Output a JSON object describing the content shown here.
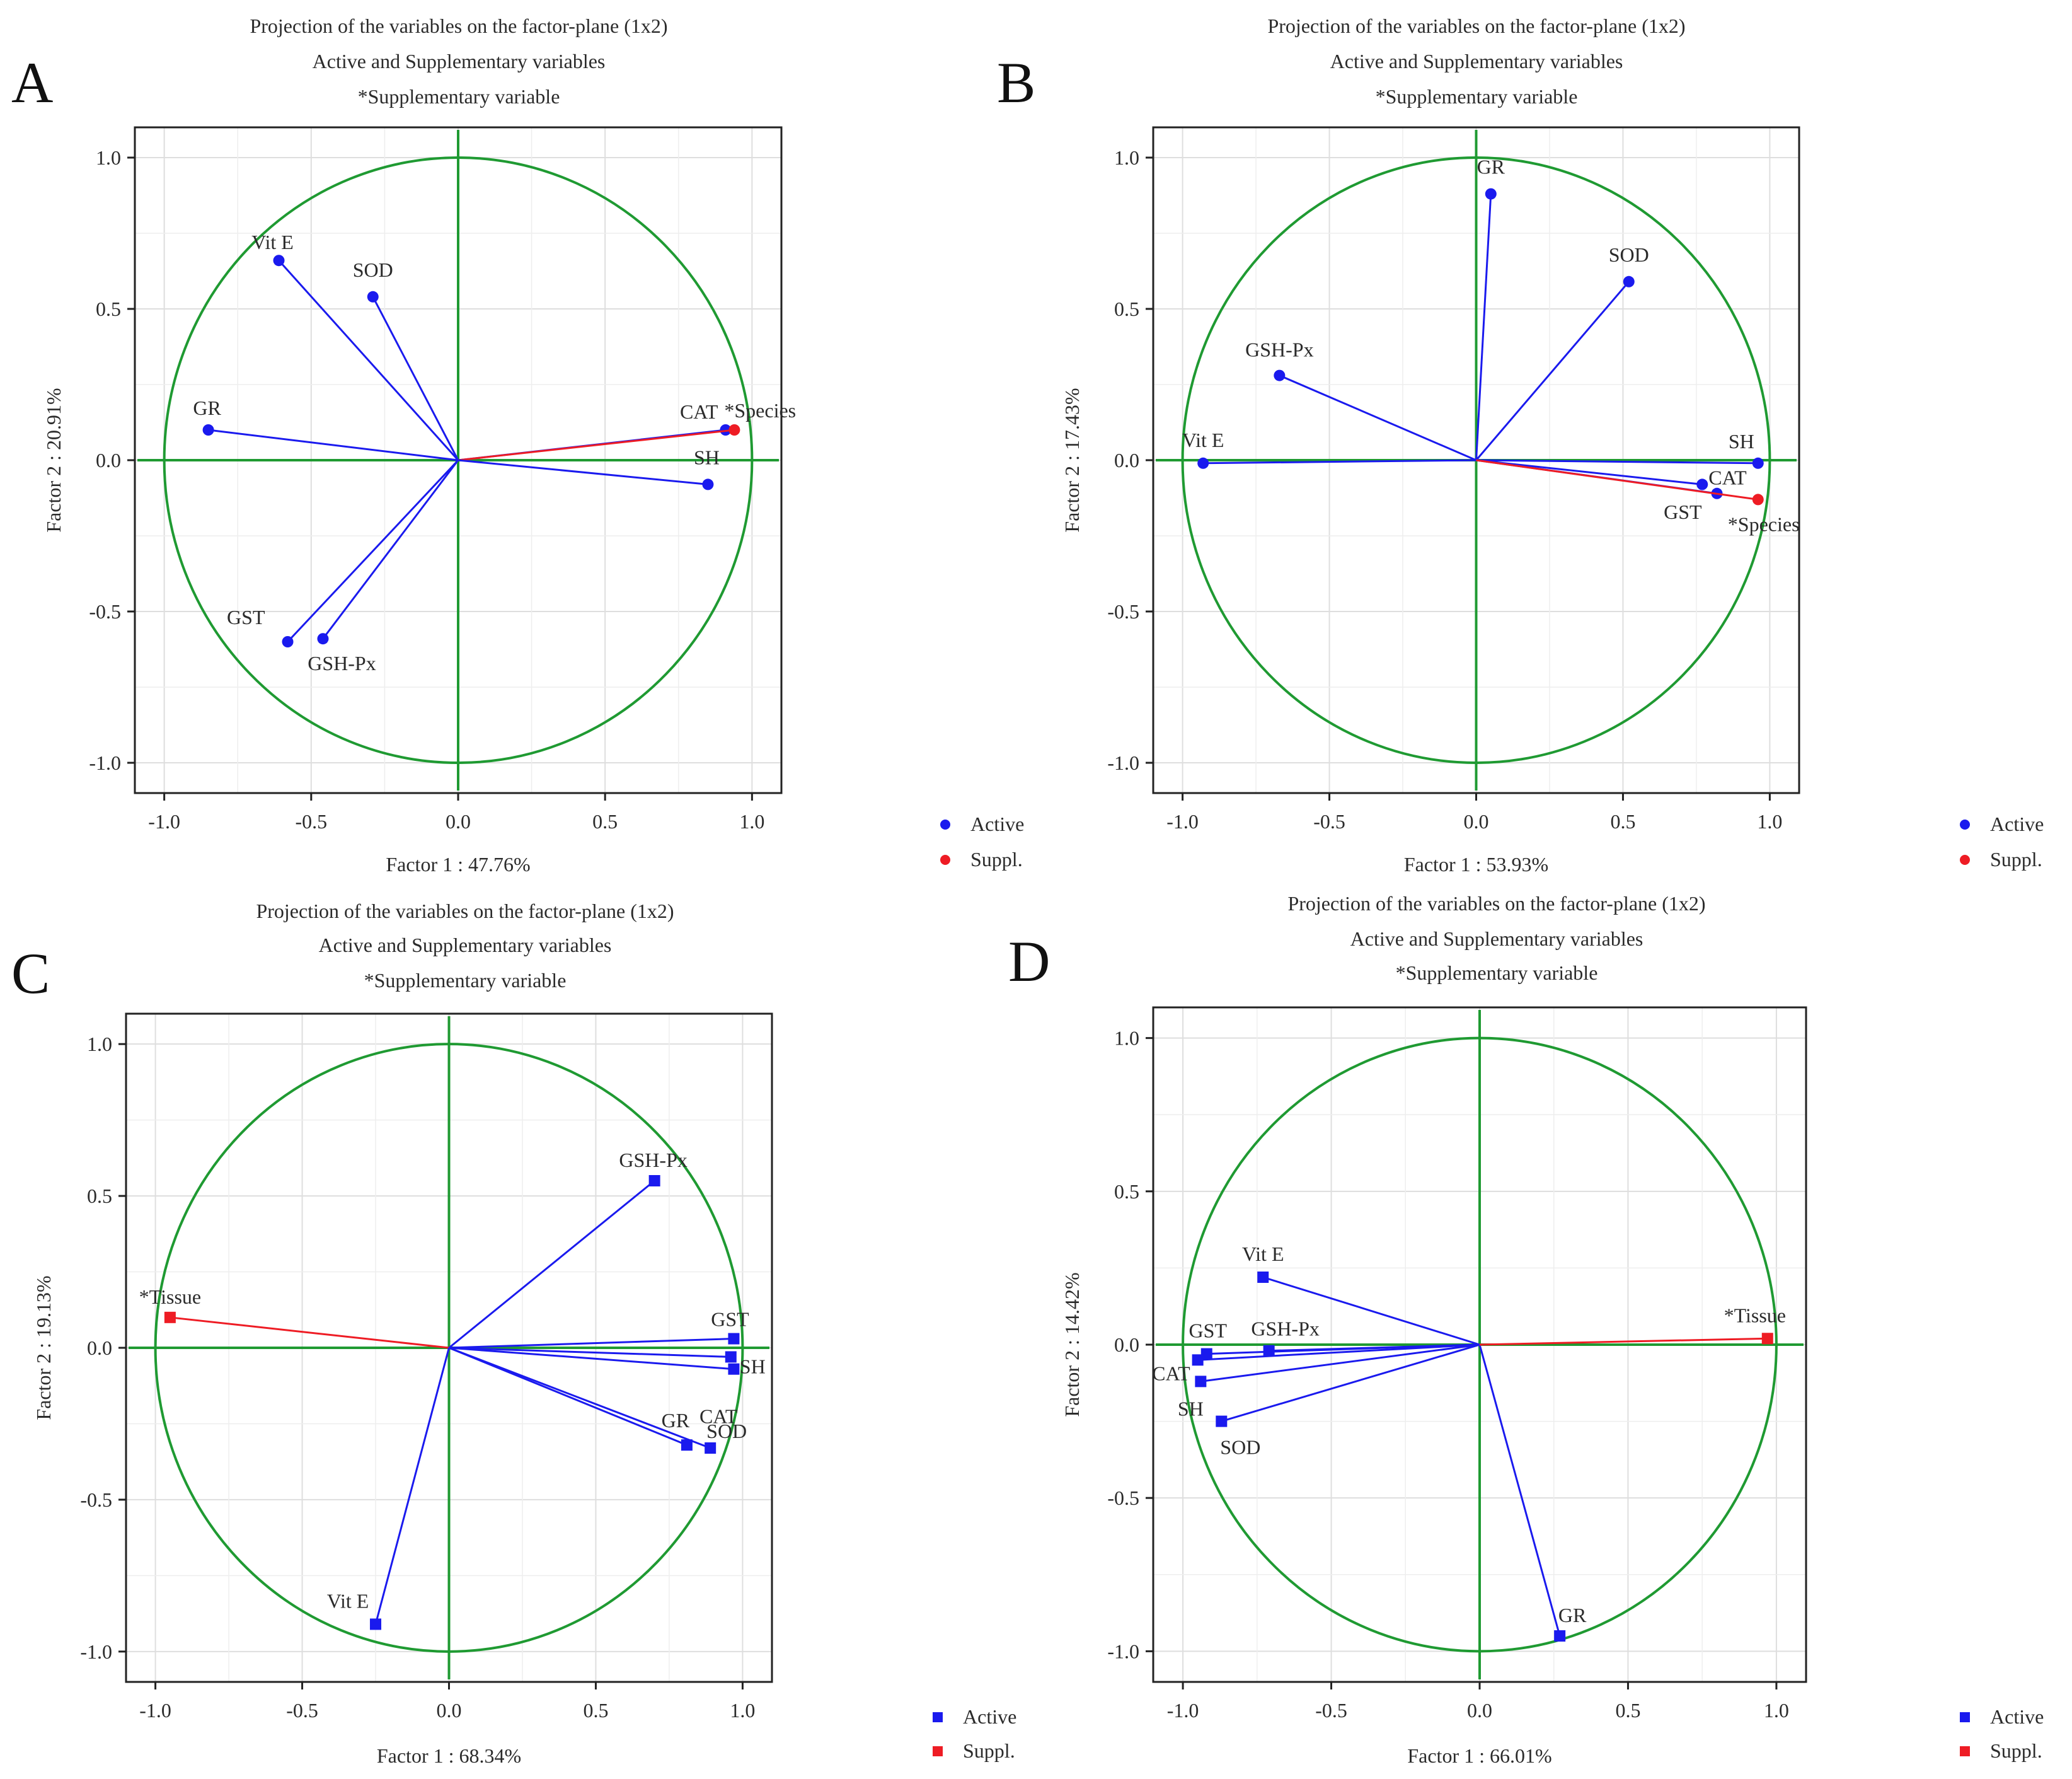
{
  "figure": {
    "title_line1": "Projection of the variables on the factor-plane (1x2)",
    "title_line2": "Active and Supplementary variables",
    "title_line3": "*Supplementary variable",
    "legend_active": "Active",
    "legend_suppl": "Suppl.",
    "colors": {
      "active": "#1a1aee",
      "suppl": "#ee1c24",
      "circle": "#1f9a32",
      "axis": "#1f9a32",
      "grid": "#dedede",
      "text": "#2b2b2b"
    }
  },
  "chart_data": [
    {
      "panel": "A",
      "type": "scatter",
      "marker": "circle",
      "xlabel": "Factor 1 : 47.76%",
      "ylabel": "Factor 2 : 20.91%",
      "xlim": [
        -1.1,
        1.1
      ],
      "ylim": [
        -1.1,
        1.1
      ],
      "xticks": [
        "-1.0",
        "-0.5",
        "0.0",
        "0.5",
        "1.0"
      ],
      "yticks": [
        "1.0",
        "0.5",
        "0.0",
        "-0.5",
        "-1.0"
      ],
      "points": [
        {
          "label": "Vit E",
          "x": -0.61,
          "y": 0.66,
          "kind": "active"
        },
        {
          "label": "SOD",
          "x": -0.29,
          "y": 0.54,
          "kind": "active"
        },
        {
          "label": "GR",
          "x": -0.85,
          "y": 0.1,
          "kind": "active"
        },
        {
          "label": "CAT",
          "x": 0.91,
          "y": 0.1,
          "kind": "active"
        },
        {
          "label": "*Species",
          "x": 0.94,
          "y": 0.1,
          "kind": "suppl"
        },
        {
          "label": "SH",
          "x": 0.85,
          "y": -0.08,
          "kind": "active"
        },
        {
          "label": "GST",
          "x": -0.58,
          "y": -0.6,
          "kind": "active"
        },
        {
          "label": "GSH-Px",
          "x": -0.46,
          "y": -0.59,
          "kind": "active"
        }
      ]
    },
    {
      "panel": "B",
      "type": "scatter",
      "marker": "circle",
      "xlabel": "Factor 1 : 53.93%",
      "ylabel": "Factor 2 : 17.43%",
      "xlim": [
        -1.1,
        1.1
      ],
      "ylim": [
        -1.1,
        1.1
      ],
      "xticks": [
        "-1.0",
        "-0.5",
        "0.0",
        "0.5",
        "1.0"
      ],
      "yticks": [
        "1.0",
        "0.5",
        "0.0",
        "-0.5",
        "-1.0"
      ],
      "points": [
        {
          "label": "GR",
          "x": 0.05,
          "y": 0.88,
          "kind": "active"
        },
        {
          "label": "SOD",
          "x": 0.52,
          "y": 0.59,
          "kind": "active"
        },
        {
          "label": "GSH-Px",
          "x": -0.67,
          "y": 0.28,
          "kind": "active"
        },
        {
          "label": "Vit E",
          "x": -0.93,
          "y": -0.01,
          "kind": "active"
        },
        {
          "label": "SH",
          "x": 0.96,
          "y": -0.01,
          "kind": "active"
        },
        {
          "label": "CAT",
          "x": 0.77,
          "y": -0.08,
          "kind": "active"
        },
        {
          "label": "GST",
          "x": 0.82,
          "y": -0.11,
          "kind": "active"
        },
        {
          "label": "*Species",
          "x": 0.96,
          "y": -0.13,
          "kind": "suppl"
        }
      ]
    },
    {
      "panel": "C",
      "type": "scatter",
      "marker": "square",
      "xlabel": "Factor 1 : 68.34%",
      "ylabel": "Factor 2 : 19.13%",
      "xlim": [
        -1.1,
        1.1
      ],
      "ylim": [
        -1.1,
        1.1
      ],
      "xticks": [
        "-1.0",
        "-0.5",
        "0.0",
        "0.5",
        "1.0"
      ],
      "yticks": [
        "1.0",
        "0.5",
        "0.0",
        "-0.5",
        "-1.0"
      ],
      "points": [
        {
          "label": "GSH-Px",
          "x": 0.7,
          "y": 0.55,
          "kind": "active"
        },
        {
          "label": "*Tissue",
          "x": -0.95,
          "y": 0.1,
          "kind": "suppl"
        },
        {
          "label": "GST",
          "x": 0.97,
          "y": 0.03,
          "kind": "active"
        },
        {
          "label": "SH",
          "x": 0.96,
          "y": -0.03,
          "kind": "active"
        },
        {
          "label": "CAT",
          "x": 0.97,
          "y": -0.07,
          "kind": "active"
        },
        {
          "label": "GR",
          "x": 0.81,
          "y": -0.32,
          "kind": "active"
        },
        {
          "label": "SOD",
          "x": 0.89,
          "y": -0.33,
          "kind": "active"
        },
        {
          "label": "Vit E",
          "x": -0.25,
          "y": -0.91,
          "kind": "active"
        }
      ]
    },
    {
      "panel": "D",
      "type": "scatter",
      "marker": "square",
      "xlabel": "Factor 1 : 66.01%",
      "ylabel": "Factor 2 : 14.42%",
      "xlim": [
        -1.1,
        1.1
      ],
      "ylim": [
        -1.1,
        1.1
      ],
      "xticks": [
        "-1.0",
        "-0.5",
        "0.0",
        "0.5",
        "1.0"
      ],
      "yticks": [
        "1.0",
        "0.5",
        "0.0",
        "-0.5",
        "-1.0"
      ],
      "points": [
        {
          "label": "Vit E",
          "x": -0.73,
          "y": 0.22,
          "kind": "active"
        },
        {
          "label": "GST",
          "x": -0.92,
          "y": -0.03,
          "kind": "active"
        },
        {
          "label": "GSH-Px",
          "x": -0.71,
          "y": -0.02,
          "kind": "active"
        },
        {
          "label": "CAT",
          "x": -0.95,
          "y": -0.05,
          "kind": "active"
        },
        {
          "label": "SH",
          "x": -0.94,
          "y": -0.12,
          "kind": "active"
        },
        {
          "label": "SOD",
          "x": -0.87,
          "y": -0.25,
          "kind": "active"
        },
        {
          "label": "GR",
          "x": 0.27,
          "y": -0.95,
          "kind": "active"
        },
        {
          "label": "*Tissue",
          "x": 0.97,
          "y": 0.02,
          "kind": "suppl"
        }
      ]
    }
  ]
}
